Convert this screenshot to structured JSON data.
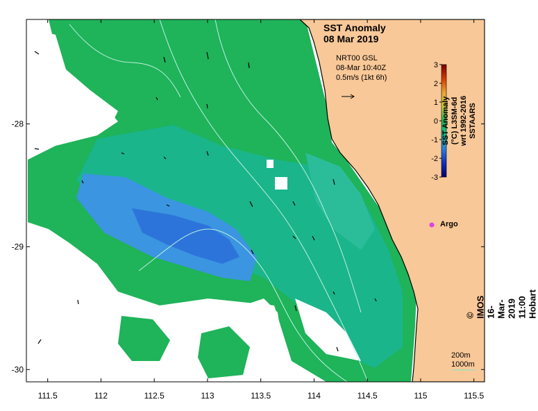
{
  "title": {
    "line1": "SST Anomaly",
    "line2": "08 Mar 2019"
  },
  "current_legend": {
    "line1": "NRT00 GSL",
    "line2": "08-Mar 10:40Z",
    "line3": "0.5m/s (1kt 6h)",
    "arrow_icon": "arrow-right-icon"
  },
  "colorbar": {
    "label_line1": "SST Anomaly (°C) L3SM-6d",
    "label_line2": "wrt 1992-2016 SSTAARS",
    "ticks": [
      "3",
      "2",
      "1",
      "0",
      "-1",
      "-2",
      "-3"
    ],
    "min": -3,
    "max": 3,
    "colors": [
      "#7a0000",
      "#d43a00",
      "#e8a63a",
      "#c8d040",
      "#1fb35a",
      "#18b890",
      "#2a7ee0",
      "#1030c0",
      "#00006a"
    ]
  },
  "axes": {
    "x_ticks": [
      "111.5",
      "112",
      "112.5",
      "113",
      "113.5",
      "114",
      "114.5",
      "115",
      "115.5"
    ],
    "x_values": [
      111.5,
      112,
      112.5,
      113,
      113.5,
      114,
      114.5,
      115,
      115.5
    ],
    "y_ticks": [
      "-28",
      "-29",
      "-30"
    ],
    "y_values": [
      -28,
      -29,
      -30
    ],
    "lon_range": [
      111.3,
      115.6
    ],
    "lat_range": [
      -27.15,
      -30.1
    ]
  },
  "argo": {
    "label": "Argo",
    "lon": 115.12,
    "lat": -28.85,
    "color": "#e040e0"
  },
  "depth_key": {
    "line1": "200m",
    "line2": "1000m"
  },
  "credit": "© IMOS 16-Mar-2019 11:00 Hobart",
  "colors": {
    "land": "#f9c898",
    "coast": "#000000",
    "sst_green": "#1fb35a",
    "sst_teal": "#19b58f",
    "sst_blue": "#2f8de0",
    "contour": "#b8eede"
  }
}
